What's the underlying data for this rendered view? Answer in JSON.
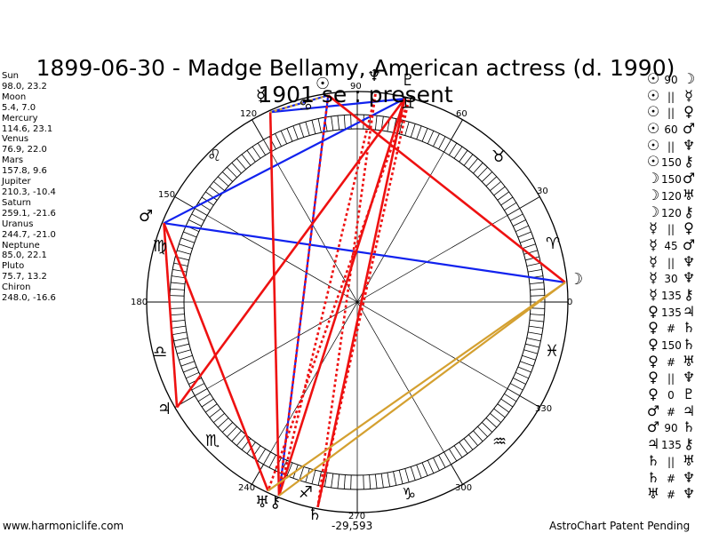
{
  "title": {
    "line1": "1899-06-30 - Madge Bellamy, American actress (d. 1990)",
    "line2": "1901 se : present"
  },
  "planets": [
    {
      "name": "Sun",
      "coords": "98.0, 23.2"
    },
    {
      "name": "Moon",
      "coords": "5.4, 7.0"
    },
    {
      "name": "Mercury",
      "coords": "114.6, 23.1"
    },
    {
      "name": "Venus",
      "coords": "76.9, 22.0"
    },
    {
      "name": "Mars",
      "coords": "157.8, 9.6"
    },
    {
      "name": "Jupiter",
      "coords": "210.3, -10.4"
    },
    {
      "name": "Saturn",
      "coords": "259.1, -21.6"
    },
    {
      "name": "Uranus",
      "coords": "244.7, -21.0"
    },
    {
      "name": "Neptune",
      "coords": "85.0, 22.1"
    },
    {
      "name": "Pluto",
      "coords": "75.7, 13.2"
    },
    {
      "name": "Chiron",
      "coords": "248.0, -16.6"
    }
  ],
  "degree_labels": [
    "0",
    "30",
    "60",
    "90",
    "120",
    "150",
    "180",
    "240",
    "270",
    "300",
    "330"
  ],
  "zodiac_signs": [
    "♈",
    "♉",
    "♊",
    "♋",
    "♌",
    "♍",
    "♎",
    "♏",
    "♐",
    "♑",
    "♒",
    "♓"
  ],
  "chart_planet_glyphs": {
    "moon": "☽",
    "mars": "♂",
    "jupiter": "♃",
    "saturn": "♄",
    "uranus_chiron": "♅⚷",
    "sun": "☉",
    "neptune": "♆",
    "pluto": "♇",
    "mercury": "☿"
  },
  "aspects": [
    {
      "p1": "☉",
      "aspect": "90",
      "p2": "☽"
    },
    {
      "p1": "☉",
      "aspect": "||",
      "p2": "☿"
    },
    {
      "p1": "☉",
      "aspect": "||",
      "p2": "♀"
    },
    {
      "p1": "☉",
      "aspect": "60",
      "p2": "♂"
    },
    {
      "p1": "☉",
      "aspect": "||",
      "p2": "♆"
    },
    {
      "p1": "☉",
      "aspect": "150",
      "p2": "⚷"
    },
    {
      "p1": "☽",
      "aspect": "150",
      "p2": "♂"
    },
    {
      "p1": "☽",
      "aspect": "120",
      "p2": "♅"
    },
    {
      "p1": "☽",
      "aspect": "120",
      "p2": "⚷"
    },
    {
      "p1": "☿",
      "aspect": "||",
      "p2": "♀"
    },
    {
      "p1": "☿",
      "aspect": "45",
      "p2": "♂"
    },
    {
      "p1": "☿",
      "aspect": "||",
      "p2": "♆"
    },
    {
      "p1": "☿",
      "aspect": "30",
      "p2": "♆"
    },
    {
      "p1": "☿",
      "aspect": "135",
      "p2": "⚷"
    },
    {
      "p1": "♀",
      "aspect": "135",
      "p2": "♃"
    },
    {
      "p1": "♀",
      "aspect": "#",
      "p2": "♄"
    },
    {
      "p1": "♀",
      "aspect": "150",
      "p2": "♄"
    },
    {
      "p1": "♀",
      "aspect": "#",
      "p2": "♅"
    },
    {
      "p1": "♀",
      "aspect": "||",
      "p2": "♆"
    },
    {
      "p1": "♀",
      "aspect": "0",
      "p2": "♇"
    },
    {
      "p1": "♂",
      "aspect": "#",
      "p2": "♃"
    },
    {
      "p1": "♂",
      "aspect": "90",
      "p2": "♄"
    },
    {
      "p1": "♃",
      "aspect": "135",
      "p2": "⚷"
    },
    {
      "p1": "♄",
      "aspect": "||",
      "p2": "♅"
    },
    {
      "p1": "♄",
      "aspect": "#",
      "p2": "♆"
    },
    {
      "p1": "♅",
      "aspect": "#",
      "p2": "♆"
    }
  ],
  "footer": {
    "left": "www.harmoniclife.com",
    "center": "-29,593",
    "right": "AstroChart Patent Pending"
  },
  "colors": {
    "red": "#ee1111",
    "blue": "#1122ee",
    "gold": "#d4a030",
    "black": "#000000"
  }
}
